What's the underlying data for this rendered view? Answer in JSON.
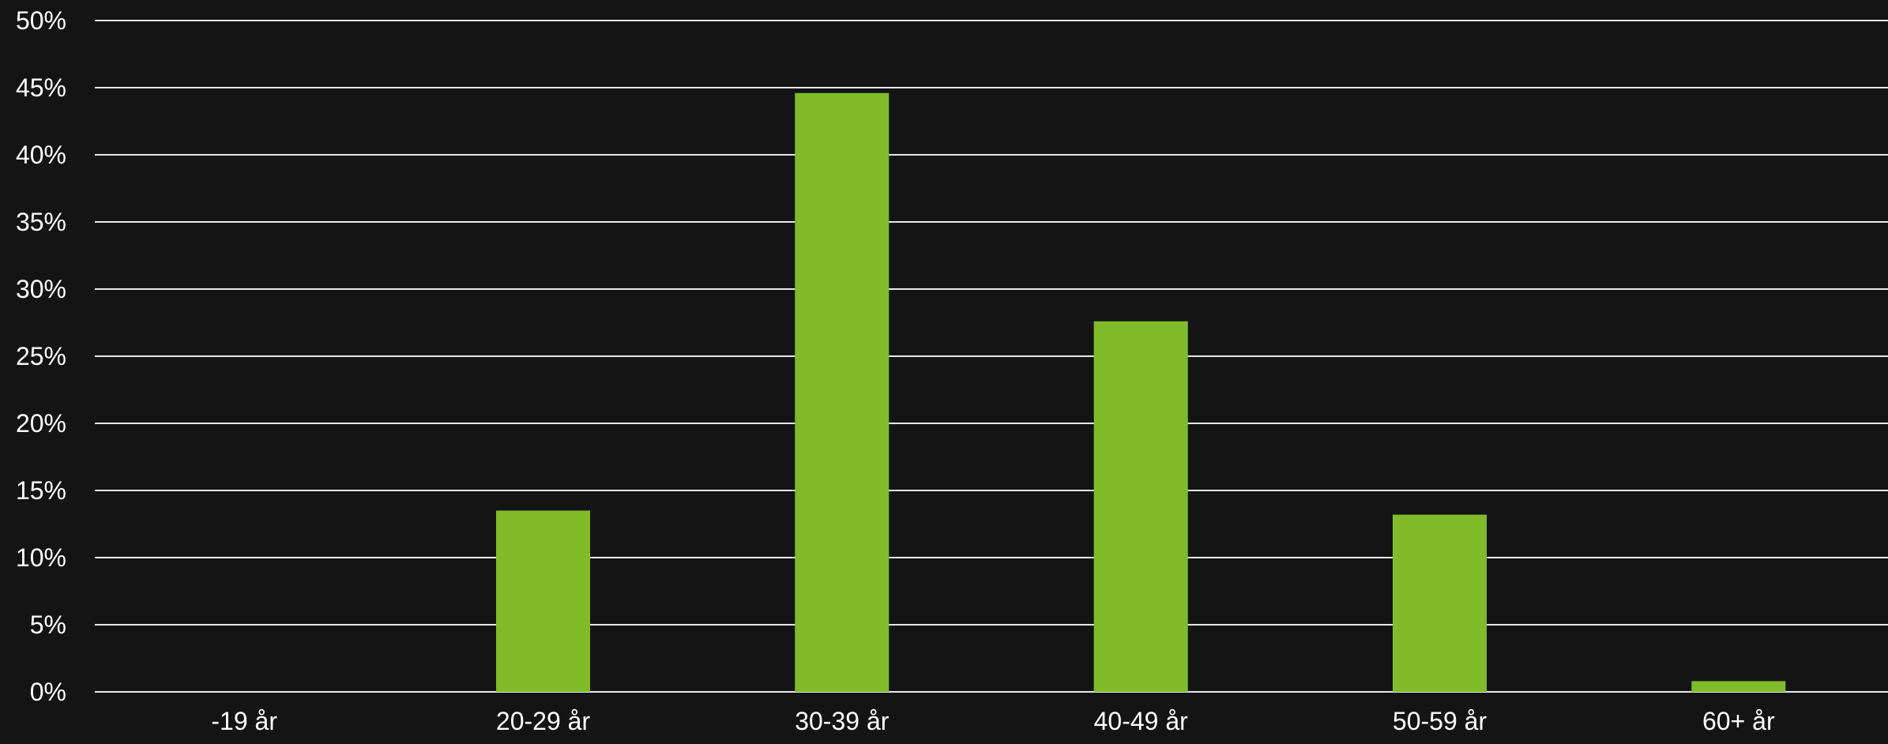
{
  "chart_data": {
    "type": "bar",
    "title": "",
    "xlabel": "",
    "ylabel": "",
    "categories": [
      "-19 år",
      "20-29 år",
      "30-39 år",
      "40-49 år",
      "50-59 år",
      "60+ år"
    ],
    "values": [
      0,
      13.5,
      44.6,
      27.6,
      13.2,
      0.8
    ],
    "ylim": [
      0,
      50
    ],
    "yticks": [
      0,
      5,
      10,
      15,
      20,
      25,
      30,
      35,
      40,
      45,
      50
    ],
    "ytick_labels": [
      "0%",
      "5%",
      "10%",
      "15%",
      "20%",
      "25%",
      "30%",
      "35%",
      "40%",
      "45%",
      "50%"
    ],
    "grid": true,
    "legend": "none",
    "colors": {
      "background": "#141414",
      "bar": "#80bb2a",
      "grid": "#e8e8e8",
      "text": "#ffffff"
    }
  }
}
